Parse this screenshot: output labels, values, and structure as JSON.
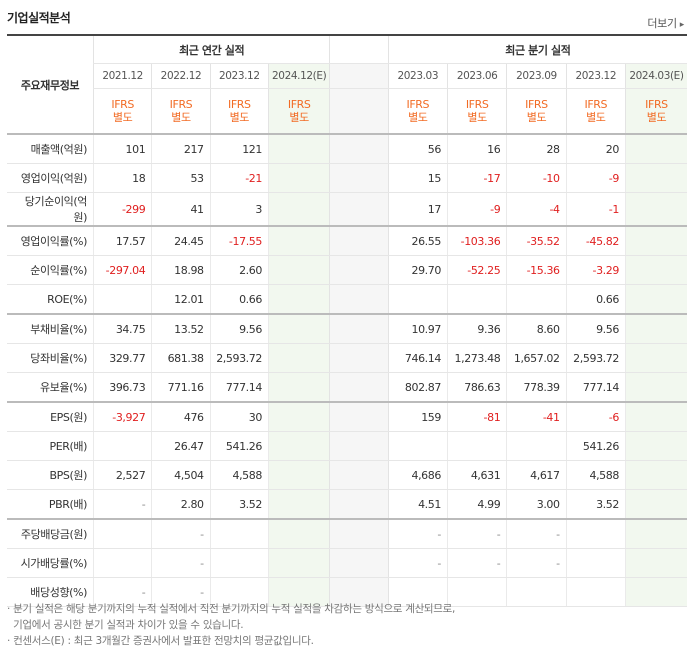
{
  "header": {
    "title": "기업실적분석",
    "more": "더보기",
    "more_arrow": "▸"
  },
  "table": {
    "corner_label": "주요재무정보",
    "annual_title": "최근 연간 실적",
    "quarter_title": "최근 분기 실적",
    "annual_periods": [
      "2021.12",
      "2022.12",
      "2023.12",
      "2024.12(E)"
    ],
    "quarter_periods": [
      "2023.03",
      "2023.06",
      "2023.09",
      "2023.12",
      "2024.03(E)"
    ],
    "basis": "IFRS 별도",
    "rows": [
      {
        "label": "매출액(억원)",
        "annual": [
          "101",
          "217",
          "121",
          ""
        ],
        "quarter": [
          "56",
          "16",
          "28",
          "20",
          ""
        ]
      },
      {
        "label": "영업이익(억원)",
        "annual": [
          "18",
          "53",
          "-21",
          ""
        ],
        "quarter": [
          "15",
          "-17",
          "-10",
          "-9",
          ""
        ]
      },
      {
        "label": "당기순이익(억원)",
        "annual": [
          "-299",
          "41",
          "3",
          ""
        ],
        "quarter": [
          "17",
          "-9",
          "-4",
          "-1",
          ""
        ]
      },
      {
        "label": "영업이익률(%)",
        "annual": [
          "17.57",
          "24.45",
          "-17.55",
          ""
        ],
        "quarter": [
          "26.55",
          "-103.36",
          "-35.52",
          "-45.82",
          ""
        ]
      },
      {
        "label": "순이익률(%)",
        "annual": [
          "-297.04",
          "18.98",
          "2.60",
          ""
        ],
        "quarter": [
          "29.70",
          "-52.25",
          "-15.36",
          "-3.29",
          ""
        ]
      },
      {
        "label": "ROE(%)",
        "annual": [
          "",
          "12.01",
          "0.66",
          ""
        ],
        "quarter": [
          "",
          "",
          "",
          "0.66",
          ""
        ]
      },
      {
        "label": "부채비율(%)",
        "annual": [
          "34.75",
          "13.52",
          "9.56",
          ""
        ],
        "quarter": [
          "10.97",
          "9.36",
          "8.60",
          "9.56",
          ""
        ]
      },
      {
        "label": "당좌비율(%)",
        "annual": [
          "329.77",
          "681.38",
          "2,593.72",
          ""
        ],
        "quarter": [
          "746.14",
          "1,273.48",
          "1,657.02",
          "2,593.72",
          ""
        ]
      },
      {
        "label": "유보율(%)",
        "annual": [
          "396.73",
          "771.16",
          "777.14",
          ""
        ],
        "quarter": [
          "802.87",
          "786.63",
          "778.39",
          "777.14",
          ""
        ]
      },
      {
        "label": "EPS(원)",
        "annual": [
          "-3,927",
          "476",
          "30",
          ""
        ],
        "quarter": [
          "159",
          "-81",
          "-41",
          "-6",
          ""
        ]
      },
      {
        "label": "PER(배)",
        "annual": [
          "",
          "26.47",
          "541.26",
          ""
        ],
        "quarter": [
          "",
          "",
          "",
          "541.26",
          ""
        ]
      },
      {
        "label": "BPS(원)",
        "annual": [
          "2,527",
          "4,504",
          "4,588",
          ""
        ],
        "quarter": [
          "4,686",
          "4,631",
          "4,617",
          "4,588",
          ""
        ]
      },
      {
        "label": "PBR(배)",
        "annual": [
          "-",
          "2.80",
          "3.52",
          ""
        ],
        "quarter": [
          "4.51",
          "4.99",
          "3.00",
          "3.52",
          ""
        ]
      },
      {
        "label": "주당배당금(원)",
        "annual": [
          "",
          "-",
          "",
          ""
        ],
        "quarter": [
          "-",
          "-",
          "-",
          "",
          ""
        ]
      },
      {
        "label": "시가배당률(%)",
        "annual": [
          "",
          "-",
          "",
          ""
        ],
        "quarter": [
          "-",
          "-",
          "-",
          "",
          ""
        ]
      },
      {
        "label": "배당성향(%)",
        "annual": [
          "-",
          "-",
          "",
          ""
        ],
        "quarter": [
          "",
          "",
          "",
          "",
          ""
        ]
      }
    ]
  },
  "notes": [
    "· 분기 실적은 해당 분기까지의 누적 실적에서 직전 분기까지의 누적 실적을 차감하는 방식으로 계산되므로,",
    "  기업에서 공시한 분기 실적과 차이가 있을 수 있습니다.",
    "· 컨센서스(E) : 최근 3개월간 증권사에서 발표한 전망치의 평균값입니다."
  ]
}
